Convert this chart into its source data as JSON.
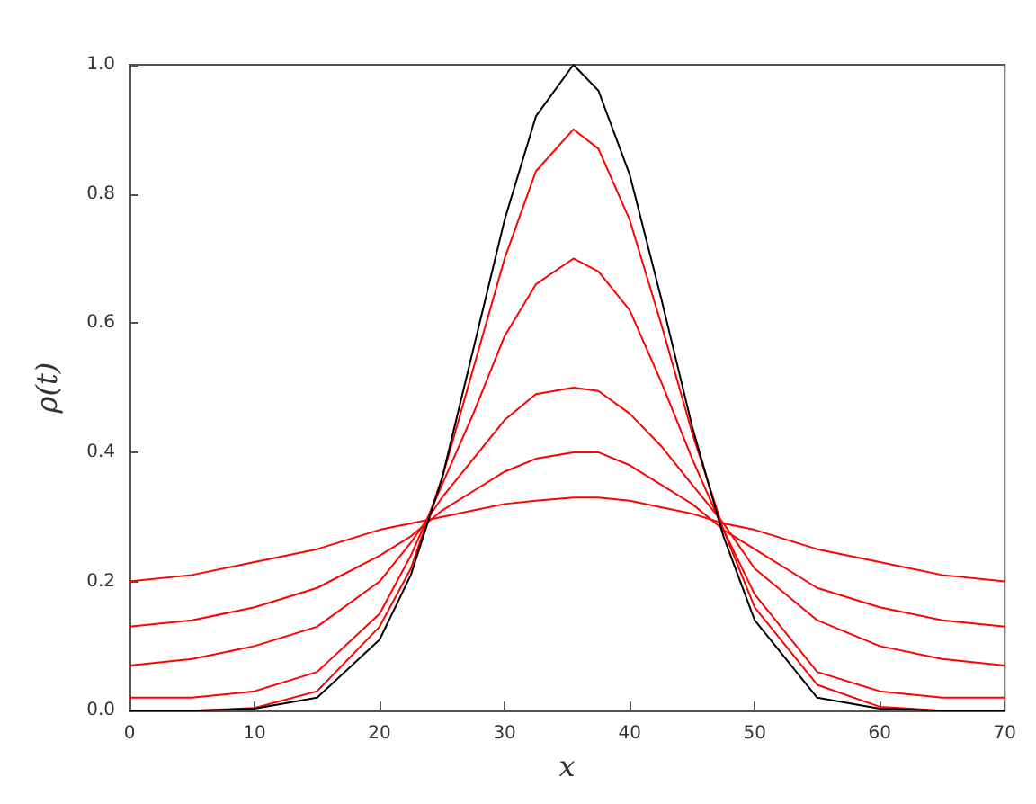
{
  "chart_data": {
    "type": "line",
    "xlabel": "x",
    "ylabel": "ρ(t)",
    "x": [
      0,
      5,
      10,
      15,
      20,
      22.5,
      25,
      27.5,
      30,
      32.5,
      35.5,
      37.5,
      40,
      42.5,
      45,
      47.5,
      50,
      55,
      60,
      65,
      70
    ],
    "series": [
      {
        "color": "#ff0000",
        "values": [
          0.2,
          0.21,
          0.23,
          0.25,
          0.28,
          0.29,
          0.3,
          0.31,
          0.32,
          0.325,
          0.33,
          0.33,
          0.325,
          0.315,
          0.305,
          0.29,
          0.28,
          0.25,
          0.23,
          0.21,
          0.2
        ]
      },
      {
        "color": "#ff0000",
        "values": [
          0.13,
          0.14,
          0.16,
          0.19,
          0.24,
          0.27,
          0.31,
          0.34,
          0.37,
          0.39,
          0.4,
          0.4,
          0.38,
          0.35,
          0.32,
          0.28,
          0.25,
          0.19,
          0.16,
          0.14,
          0.13
        ]
      },
      {
        "color": "#ff0000",
        "values": [
          0.07,
          0.08,
          0.1,
          0.13,
          0.2,
          0.26,
          0.33,
          0.39,
          0.45,
          0.49,
          0.5,
          0.495,
          0.46,
          0.41,
          0.35,
          0.29,
          0.22,
          0.14,
          0.1,
          0.08,
          0.07
        ]
      },
      {
        "color": "#ff0000",
        "values": [
          0.02,
          0.02,
          0.03,
          0.06,
          0.15,
          0.24,
          0.35,
          0.46,
          0.58,
          0.66,
          0.7,
          0.68,
          0.62,
          0.51,
          0.39,
          0.28,
          0.18,
          0.06,
          0.03,
          0.02,
          0.02
        ]
      },
      {
        "color": "#ff0000",
        "values": [
          0,
          0,
          0.004,
          0.03,
          0.13,
          0.22,
          0.36,
          0.53,
          0.7,
          0.835,
          0.9,
          0.87,
          0.76,
          0.6,
          0.43,
          0.28,
          0.16,
          0.04,
          0.006,
          0,
          0
        ]
      },
      {
        "color": "#000000",
        "values": [
          0,
          0,
          0.003,
          0.02,
          0.11,
          0.21,
          0.36,
          0.56,
          0.76,
          0.92,
          1.0,
          0.96,
          0.83,
          0.64,
          0.44,
          0.27,
          0.14,
          0.02,
          0.003,
          0,
          0
        ]
      }
    ],
    "xlim": [
      0,
      70
    ],
    "xticks": [
      0,
      10,
      20,
      30,
      40,
      50,
      60,
      70
    ],
    "ylim": [
      0,
      1
    ],
    "yticks": [
      {
        "value": 0,
        "label": "0.0"
      },
      {
        "value": 0.2,
        "label": "0.2"
      },
      {
        "value": 0.4,
        "label": "0.4"
      },
      {
        "value": 0.6,
        "label": "0.6"
      },
      {
        "value": 0.8,
        "label": "0.8"
      },
      {
        "value": 1,
        "label": "1.0"
      }
    ]
  }
}
